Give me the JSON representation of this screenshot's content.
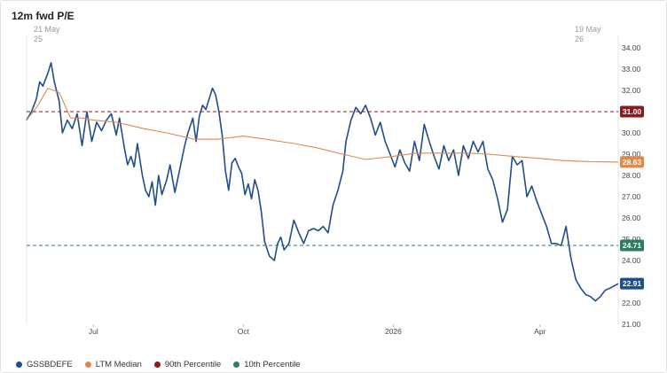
{
  "title": "12m fwd P/E",
  "range": {
    "start_line1": "21 May",
    "start_line2": "25",
    "end_line1": "19 May",
    "end_line2": "26"
  },
  "legend": {
    "items": [
      {
        "label": "GSSBDEFE",
        "color": "#1f4e8c"
      },
      {
        "label": "LTM Median",
        "color": "#e08a4a"
      },
      {
        "label": "90th Percentile",
        "color": "#8b1a1a"
      },
      {
        "label": "10th Percentile",
        "color": "#2e7d5b"
      }
    ]
  },
  "chart_data": {
    "type": "line",
    "title": "12m fwd P/E",
    "x_start": "2025-05-21",
    "x_end": "2026-05-19",
    "x_ticks": [
      {
        "label": "Jul",
        "date": "2025-07-01"
      },
      {
        "label": "Oct",
        "date": "2025-10-01"
      },
      {
        "label": "2026",
        "date": "2026-01-01"
      },
      {
        "label": "Apr",
        "date": "2026-04-01"
      }
    ],
    "ylim": [
      21,
      34
    ],
    "y_ticks": [
      21.0,
      22.0,
      23.0,
      24.0,
      25.0,
      26.0,
      27.0,
      28.0,
      29.0,
      30.0,
      31.0,
      32.0,
      33.0,
      34.0
    ],
    "grid": false,
    "legend_position": "bottom-left",
    "series": [
      {
        "name": "GSSBDEFE",
        "color": "#1f4e8c",
        "last_value": 22.91,
        "points": [
          [
            "2025-05-21",
            30.6
          ],
          [
            "2025-05-24",
            31.0
          ],
          [
            "2025-05-27",
            31.6
          ],
          [
            "2025-05-29",
            32.4
          ],
          [
            "2025-05-31",
            32.2
          ],
          [
            "2025-06-03",
            32.8
          ],
          [
            "2025-06-05",
            33.3
          ],
          [
            "2025-06-07",
            32.4
          ],
          [
            "2025-06-10",
            31.5
          ],
          [
            "2025-06-12",
            30.0
          ],
          [
            "2025-06-15",
            30.6
          ],
          [
            "2025-06-18",
            30.2
          ],
          [
            "2025-06-21",
            30.9
          ],
          [
            "2025-06-24",
            29.4
          ],
          [
            "2025-06-27",
            31.0
          ],
          [
            "2025-06-30",
            29.6
          ],
          [
            "2025-07-03",
            30.5
          ],
          [
            "2025-07-06",
            30.1
          ],
          [
            "2025-07-09",
            30.6
          ],
          [
            "2025-07-12",
            30.9
          ],
          [
            "2025-07-15",
            29.9
          ],
          [
            "2025-07-17",
            30.7
          ],
          [
            "2025-07-20",
            29.3
          ],
          [
            "2025-07-22",
            28.5
          ],
          [
            "2025-07-24",
            28.9
          ],
          [
            "2025-07-26",
            28.4
          ],
          [
            "2025-07-28",
            29.5
          ],
          [
            "2025-07-31",
            28.0
          ],
          [
            "2025-08-02",
            27.3
          ],
          [
            "2025-08-04",
            27.0
          ],
          [
            "2025-08-06",
            27.7
          ],
          [
            "2025-08-08",
            26.6
          ],
          [
            "2025-08-10",
            28.0
          ],
          [
            "2025-08-12",
            27.1
          ],
          [
            "2025-08-15",
            27.8
          ],
          [
            "2025-08-17",
            28.5
          ],
          [
            "2025-08-20",
            27.2
          ],
          [
            "2025-08-23",
            28.3
          ],
          [
            "2025-08-26",
            29.4
          ],
          [
            "2025-08-28",
            30.0
          ],
          [
            "2025-08-31",
            30.7
          ],
          [
            "2025-09-02",
            29.6
          ],
          [
            "2025-09-04",
            30.8
          ],
          [
            "2025-09-06",
            31.3
          ],
          [
            "2025-09-08",
            31.1
          ],
          [
            "2025-09-10",
            31.6
          ],
          [
            "2025-09-12",
            32.1
          ],
          [
            "2025-09-14",
            31.8
          ],
          [
            "2025-09-16",
            31.0
          ],
          [
            "2025-09-18",
            29.9
          ],
          [
            "2025-09-20",
            28.2
          ],
          [
            "2025-09-22",
            27.3
          ],
          [
            "2025-09-24",
            28.6
          ],
          [
            "2025-09-26",
            28.8
          ],
          [
            "2025-09-28",
            28.4
          ],
          [
            "2025-09-30",
            28.1
          ],
          [
            "2025-10-02",
            27.1
          ],
          [
            "2025-10-04",
            27.6
          ],
          [
            "2025-10-06",
            26.9
          ],
          [
            "2025-10-08",
            27.8
          ],
          [
            "2025-10-10",
            27.3
          ],
          [
            "2025-10-12",
            26.3
          ],
          [
            "2025-10-14",
            24.9
          ],
          [
            "2025-10-17",
            24.2
          ],
          [
            "2025-10-20",
            24.0
          ],
          [
            "2025-10-22",
            24.8
          ],
          [
            "2025-10-24",
            25.1
          ],
          [
            "2025-10-26",
            24.5
          ],
          [
            "2025-10-29",
            24.8
          ],
          [
            "2025-11-01",
            25.9
          ],
          [
            "2025-11-04",
            25.3
          ],
          [
            "2025-11-07",
            24.8
          ],
          [
            "2025-11-10",
            25.4
          ],
          [
            "2025-11-13",
            25.5
          ],
          [
            "2025-11-16",
            25.4
          ],
          [
            "2025-11-19",
            25.6
          ],
          [
            "2025-11-22",
            25.3
          ],
          [
            "2025-11-25",
            26.6
          ],
          [
            "2025-11-28",
            27.3
          ],
          [
            "2025-12-01",
            28.2
          ],
          [
            "2025-12-03",
            29.6
          ],
          [
            "2025-12-06",
            30.6
          ],
          [
            "2025-12-09",
            31.2
          ],
          [
            "2025-12-12",
            30.9
          ],
          [
            "2025-12-15",
            31.3
          ],
          [
            "2025-12-18",
            30.7
          ],
          [
            "2025-12-21",
            29.9
          ],
          [
            "2025-12-24",
            30.5
          ],
          [
            "2025-12-27",
            29.6
          ],
          [
            "2025-12-30",
            29.0
          ],
          [
            "2026-01-02",
            28.4
          ],
          [
            "2026-01-05",
            29.2
          ],
          [
            "2026-01-08",
            28.6
          ],
          [
            "2026-01-11",
            28.2
          ],
          [
            "2026-01-14",
            29.6
          ],
          [
            "2026-01-17",
            28.7
          ],
          [
            "2026-01-20",
            30.4
          ],
          [
            "2026-01-23",
            29.6
          ],
          [
            "2026-01-26",
            28.9
          ],
          [
            "2026-01-29",
            28.3
          ],
          [
            "2026-02-01",
            29.4
          ],
          [
            "2026-02-04",
            28.7
          ],
          [
            "2026-02-07",
            29.2
          ],
          [
            "2026-02-10",
            28.0
          ],
          [
            "2026-02-13",
            29.4
          ],
          [
            "2026-02-16",
            28.8
          ],
          [
            "2026-02-19",
            29.6
          ],
          [
            "2026-02-22",
            29.1
          ],
          [
            "2026-02-25",
            29.6
          ],
          [
            "2026-02-28",
            28.3
          ],
          [
            "2026-03-03",
            27.8
          ],
          [
            "2026-03-06",
            26.9
          ],
          [
            "2026-03-09",
            25.8
          ],
          [
            "2026-03-12",
            26.4
          ],
          [
            "2026-03-15",
            28.9
          ],
          [
            "2026-03-18",
            28.5
          ],
          [
            "2026-03-21",
            28.7
          ],
          [
            "2026-03-24",
            27.0
          ],
          [
            "2026-03-27",
            27.5
          ],
          [
            "2026-03-30",
            26.8
          ],
          [
            "2026-04-02",
            26.2
          ],
          [
            "2026-04-05",
            25.6
          ],
          [
            "2026-04-08",
            24.8
          ],
          [
            "2026-04-11",
            24.8
          ],
          [
            "2026-04-14",
            24.7
          ],
          [
            "2026-04-17",
            25.6
          ],
          [
            "2026-04-20",
            24.1
          ],
          [
            "2026-04-23",
            23.1
          ],
          [
            "2026-04-26",
            22.7
          ],
          [
            "2026-04-29",
            22.4
          ],
          [
            "2026-05-02",
            22.3
          ],
          [
            "2026-05-05",
            22.1
          ],
          [
            "2026-05-08",
            22.3
          ],
          [
            "2026-05-11",
            22.6
          ],
          [
            "2026-05-14",
            22.7
          ],
          [
            "2026-05-19",
            22.91
          ]
        ]
      },
      {
        "name": "LTM Median",
        "color": "#e08a4a",
        "last_value": 28.63,
        "points": [
          [
            "2025-05-21",
            30.6
          ],
          [
            "2025-05-28",
            31.3
          ],
          [
            "2025-06-03",
            32.1
          ],
          [
            "2025-06-10",
            31.9
          ],
          [
            "2025-06-17",
            30.7
          ],
          [
            "2025-06-24",
            30.7
          ],
          [
            "2025-07-01",
            30.6
          ],
          [
            "2025-07-15",
            30.5
          ],
          [
            "2025-08-01",
            30.2
          ],
          [
            "2025-08-15",
            30.0
          ],
          [
            "2025-09-01",
            29.7
          ],
          [
            "2025-09-15",
            29.7
          ],
          [
            "2025-10-01",
            29.85
          ],
          [
            "2025-10-15",
            29.7
          ],
          [
            "2025-11-01",
            29.5
          ],
          [
            "2025-11-15",
            29.3
          ],
          [
            "2025-12-01",
            29.0
          ],
          [
            "2025-12-15",
            28.75
          ],
          [
            "2026-01-01",
            28.9
          ],
          [
            "2026-01-15",
            29.05
          ],
          [
            "2026-02-01",
            29.05
          ],
          [
            "2026-02-15",
            29.05
          ],
          [
            "2026-03-01",
            29.0
          ],
          [
            "2026-03-15",
            28.9
          ],
          [
            "2026-04-01",
            28.8
          ],
          [
            "2026-04-15",
            28.7
          ],
          [
            "2026-05-01",
            28.65
          ],
          [
            "2026-05-19",
            28.63
          ]
        ]
      },
      {
        "name": "90th Percentile",
        "color": "#8b1a1a",
        "value": 31.0,
        "dashed": true
      },
      {
        "name": "10th Percentile",
        "color": "#2e7d5b",
        "value": 24.71,
        "dashed": true
      }
    ]
  }
}
